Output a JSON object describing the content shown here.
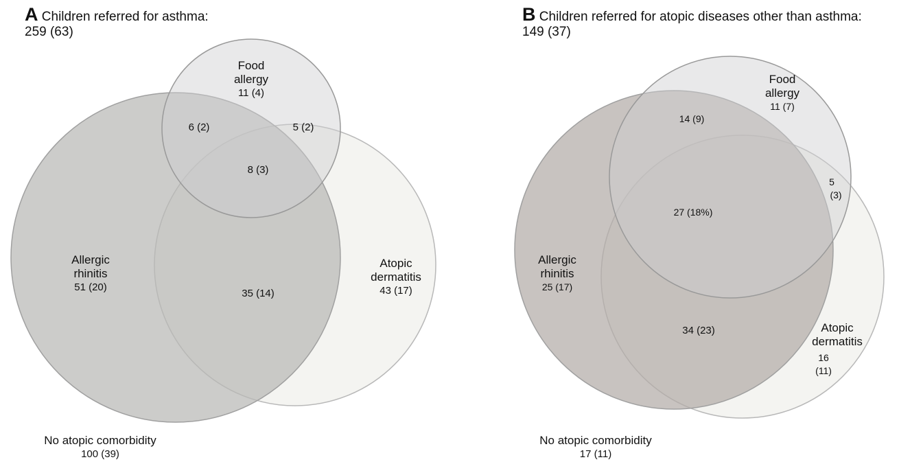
{
  "panelA": {
    "letter": "A",
    "title": "Children referred for asthma:",
    "total": "259 (63)",
    "sets": {
      "food_allergy": {
        "name_line1": "Food",
        "name_line2": "allergy",
        "value": "11 (4)"
      },
      "allergic_rhinitis": {
        "name_line1": "Allergic",
        "name_line2": "rhinitis",
        "value": "51 (20)"
      },
      "atopic_dermatitis": {
        "name_line1": "Atopic",
        "name_line2": "dermatitis",
        "value": "43 (17)"
      }
    },
    "intersections": {
      "ar_fa": "6 (2)",
      "fa_ad": "5 (2)",
      "all_three": "8 (3)",
      "ar_ad": "35 (14)"
    },
    "none": {
      "label": "No atopic comorbidity",
      "value": "100 (39)"
    },
    "colors": {
      "allergic_rhinitis": "#b9b9b5",
      "food_allergy": "#cfcfd1",
      "atopic_dermatitis": "#f3f3ef"
    }
  },
  "panelB": {
    "letter": "B",
    "title": "Children referred for atopic diseases other than asthma:",
    "total": "149 (37)",
    "sets": {
      "food_allergy": {
        "name_line1": "Food",
        "name_line2": "allergy",
        "value": "11 (7)"
      },
      "allergic_rhinitis": {
        "name_line1": "Allergic",
        "name_line2": "rhinitis",
        "value": "25 (17)"
      },
      "atopic_dermatitis": {
        "name_line1": "Atopic",
        "name_line2": "dermatitis",
        "value_line1": "16",
        "value_line2": "(11)"
      }
    },
    "intersections": {
      "ar_fa": "14 (9)",
      "fa_ad_line1": "5",
      "fa_ad_line2": "(3)",
      "all_three": "27 (18%)",
      "ar_ad": "34 (23)"
    },
    "none": {
      "label": "No atopic comorbidity",
      "value": "17 (11)"
    },
    "colors": {
      "allergic_rhinitis": "#b3aca8",
      "food_allergy": "#cfcfd1",
      "atopic_dermatitis": "#f3f3ef"
    }
  }
}
